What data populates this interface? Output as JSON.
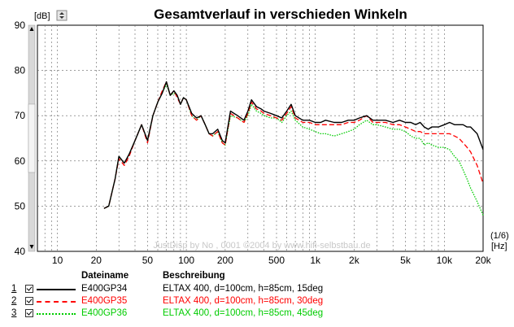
{
  "chart_data": {
    "type": "line",
    "title": "Gesamtverlauf in verschieden Winkeln",
    "ylabel": "[dB]",
    "xlabel": "[Hz]",
    "smoothing_label": "(1/6)",
    "x_scale": "log",
    "xlim": [
      7,
      20000
    ],
    "ylim": [
      40,
      90
    ],
    "y_ticks": [
      "90",
      "80",
      "70",
      "60",
      "50",
      "40"
    ],
    "y_tick_values": [
      90,
      80,
      70,
      60,
      50,
      40
    ],
    "x_ticks": [
      "10",
      "20",
      "50",
      "100",
      "200",
      "500",
      "1k",
      "2k",
      "5k",
      "10k",
      "20k"
    ],
    "x_tick_values": [
      10,
      20,
      50,
      100,
      200,
      500,
      1000,
      2000,
      5000,
      10000,
      20000
    ],
    "grid": true,
    "watermark": "JustDisp by No , 0001 ©2004 by www.hifi-selbstbau.de",
    "series": [
      {
        "name": "E400GP34",
        "color": "#000000",
        "dash": "solid",
        "x": [
          23,
          25,
          28,
          30,
          33,
          36,
          40,
          45,
          50,
          55,
          60,
          65,
          70,
          75,
          80,
          85,
          90,
          95,
          100,
          110,
          120,
          130,
          140,
          150,
          160,
          175,
          190,
          200,
          220,
          250,
          280,
          300,
          320,
          350,
          380,
          400,
          450,
          500,
          550,
          600,
          650,
          700,
          800,
          900,
          1000,
          1100,
          1200,
          1400,
          1600,
          1800,
          2000,
          2200,
          2500,
          2800,
          3000,
          3500,
          4000,
          4500,
          5000,
          5500,
          6000,
          6500,
          7000,
          7500,
          8000,
          9000,
          10000,
          11000,
          12000,
          13000,
          14000,
          15000,
          16000,
          18000,
          20000
        ],
        "y": [
          49.5,
          50,
          56,
          61,
          59.5,
          61.5,
          64.5,
          68,
          64.5,
          70,
          73,
          75,
          77.5,
          74.5,
          75.5,
          74.5,
          72.5,
          74,
          73.5,
          70.5,
          69.5,
          70,
          68,
          66,
          66,
          67,
          64.5,
          64,
          71,
          70,
          69,
          71,
          73.5,
          72,
          71.5,
          71,
          70.5,
          70,
          69.5,
          71,
          72.5,
          70,
          69,
          69,
          68.5,
          68.5,
          69,
          68.5,
          68.5,
          69,
          69,
          69.5,
          70,
          69,
          69,
          69,
          68.5,
          69,
          68.5,
          68.5,
          68,
          68.5,
          67.5,
          67,
          67.5,
          67.5,
          68,
          68.5,
          68,
          68,
          68,
          67.5,
          67.5,
          66,
          62.5
        ]
      },
      {
        "name": "E400GP35",
        "color": "#ff0000",
        "dash": "dashed",
        "x": [
          23,
          25,
          28,
          30,
          33,
          36,
          40,
          45,
          50,
          55,
          60,
          65,
          70,
          75,
          80,
          85,
          90,
          95,
          100,
          110,
          120,
          130,
          140,
          150,
          160,
          175,
          190,
          200,
          220,
          250,
          280,
          300,
          320,
          350,
          380,
          400,
          450,
          500,
          550,
          600,
          650,
          700,
          800,
          900,
          1000,
          1100,
          1200,
          1400,
          1600,
          1800,
          2000,
          2200,
          2500,
          2800,
          3000,
          3500,
          4000,
          4500,
          5000,
          5500,
          6000,
          6500,
          7000,
          7500,
          8000,
          9000,
          10000,
          11000,
          12000,
          13000,
          14000,
          15000,
          16000,
          18000,
          20000
        ],
        "y": [
          49.5,
          50,
          56,
          60.5,
          59,
          61,
          64.5,
          68,
          64,
          70,
          73,
          75.5,
          77.5,
          74.5,
          75.5,
          74,
          72.5,
          74,
          73.5,
          70,
          69,
          70,
          68,
          66,
          65.5,
          66.5,
          64,
          63.5,
          70.5,
          69.5,
          68.5,
          70.5,
          73,
          71.5,
          71,
          70.5,
          70,
          69.5,
          69,
          70.5,
          72,
          69.5,
          68.5,
          68.5,
          68,
          68,
          68,
          68,
          68,
          68.5,
          68.5,
          69,
          70,
          68.5,
          68.5,
          68.5,
          68,
          68,
          67.5,
          67,
          66.5,
          66.5,
          66,
          66,
          66,
          66,
          66,
          66,
          65.5,
          65,
          64,
          63,
          62,
          59,
          55
        ]
      },
      {
        "name": "E400GP36",
        "color": "#00cc00",
        "dash": "dotted",
        "x": [
          23,
          25,
          28,
          30,
          33,
          36,
          40,
          45,
          50,
          55,
          60,
          65,
          70,
          75,
          80,
          85,
          90,
          95,
          100,
          110,
          120,
          130,
          140,
          150,
          160,
          175,
          190,
          200,
          220,
          250,
          280,
          300,
          320,
          350,
          380,
          400,
          450,
          500,
          550,
          600,
          650,
          700,
          800,
          900,
          1000,
          1100,
          1200,
          1400,
          1600,
          1800,
          2000,
          2200,
          2500,
          2800,
          3000,
          3500,
          4000,
          4500,
          5000,
          5500,
          6000,
          6500,
          7000,
          7500,
          8000,
          9000,
          10000,
          11000,
          12000,
          13000,
          14000,
          15000,
          16000,
          18000,
          20000
        ],
        "y": [
          49.5,
          50,
          56,
          61,
          59.5,
          61.5,
          64.5,
          68,
          64.5,
          70,
          73,
          75,
          77,
          74.5,
          75,
          74.5,
          72.5,
          74,
          73.5,
          70,
          69,
          70,
          68,
          66,
          65.5,
          66.5,
          64,
          63.5,
          70,
          69.5,
          68.5,
          70,
          72.5,
          71,
          70.5,
          70,
          69.5,
          69.5,
          68.5,
          70,
          71,
          69,
          67.5,
          67,
          66.5,
          66,
          66,
          65.5,
          66,
          66.5,
          67,
          68,
          69,
          68,
          68,
          67.5,
          67,
          67,
          66.5,
          65.5,
          65,
          65,
          63.5,
          64,
          63.5,
          63,
          63,
          62.5,
          61,
          60,
          58,
          56,
          54,
          51,
          48
        ]
      }
    ]
  },
  "legend": {
    "header_filename": "Dateiname",
    "header_description": "Beschreibung",
    "rows": [
      {
        "num": "1",
        "filename": "E400GP34",
        "description": "ELTAX 400, d=100cm, h=85cm, 15deg",
        "color": "#000000",
        "dash": "solid"
      },
      {
        "num": "2",
        "filename": "E400GP35",
        "description": "ELTAX 400, d=100cm, h=85cm, 30deg",
        "color": "#ff0000",
        "dash": "dashed"
      },
      {
        "num": "3",
        "filename": "E400GP36",
        "description": "ELTAX 400, d=100cm, h=85cm, 45deg",
        "color": "#00cc00",
        "dash": "dotted"
      }
    ]
  }
}
